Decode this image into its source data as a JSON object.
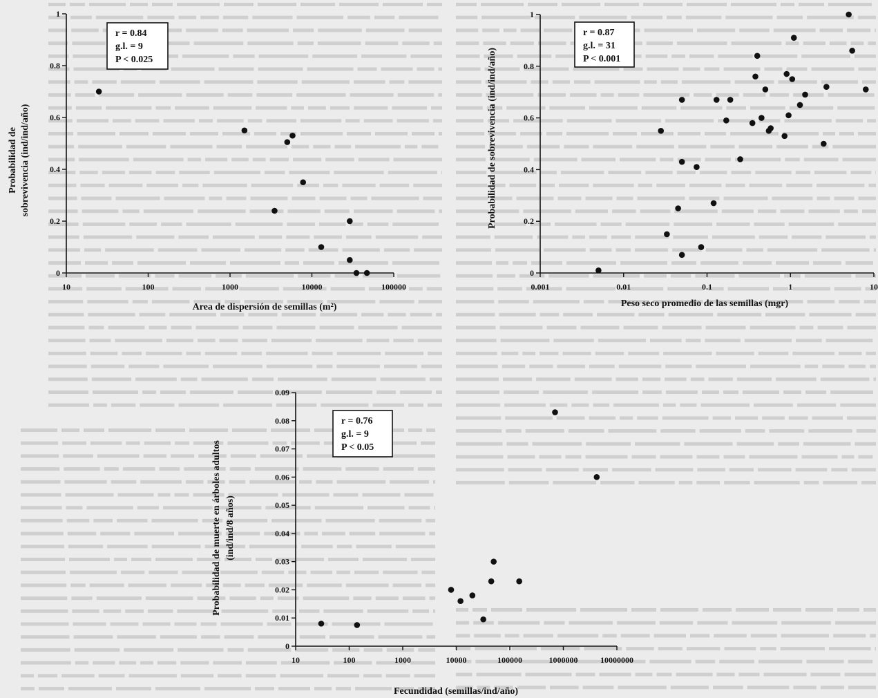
{
  "colors": {
    "page": "#ececec",
    "ink": "#111111",
    "ghost_text": "#cfcfcf",
    "stat_box": "#ffffff"
  },
  "chart_data": [
    {
      "type": "scatter",
      "xlabel": "Area de dispersión de semillas (m²)",
      "ylabel_lines": [
        "Probabilidad de",
        "sobrevivencia (ind/ind/año)"
      ],
      "x_scale": "log",
      "xlim": [
        10,
        100000
      ],
      "ylim": [
        0,
        1
      ],
      "x_ticks": [
        10,
        100,
        1000,
        10000,
        100000
      ],
      "x_tick_labels": [
        "10",
        "100",
        "1000",
        "10000",
        "100000"
      ],
      "y_ticks": [
        0,
        0.2,
        0.4,
        0.6,
        0.8,
        1
      ],
      "y_tick_labels": [
        "0",
        "0.2",
        "0.4",
        "0.6",
        "0.8",
        "1"
      ],
      "stats": [
        "r = 0.84",
        "g.l. = 9",
        "P < 0.025"
      ],
      "points": [
        {
          "x": 25,
          "y": 0.7
        },
        {
          "x": 1500,
          "y": 0.55
        },
        {
          "x": 5000,
          "y": 0.505
        },
        {
          "x": 5800,
          "y": 0.53
        },
        {
          "x": 7800,
          "y": 0.35
        },
        {
          "x": 3500,
          "y": 0.24
        },
        {
          "x": 13000,
          "y": 0.1
        },
        {
          "x": 29000,
          "y": 0.2
        },
        {
          "x": 29000,
          "y": 0.05
        },
        {
          "x": 35000,
          "y": 0.0
        },
        {
          "x": 47000,
          "y": 0.0
        }
      ]
    },
    {
      "type": "scatter",
      "xlabel": "Peso seco promedio de las semillas (mgr)",
      "ylabel_lines": [
        "Probabilidad de sobrevivencia (ind/ind/año)"
      ],
      "x_scale": "log",
      "xlim": [
        0.001,
        10
      ],
      "ylim": [
        0,
        1
      ],
      "x_ticks": [
        0.001,
        0.01,
        0.1,
        1,
        10
      ],
      "x_tick_labels": [
        "0.001",
        "0.01",
        "0.1",
        "1",
        "10"
      ],
      "y_ticks": [
        0,
        0.2,
        0.4,
        0.6,
        0.8,
        1
      ],
      "y_tick_labels": [
        "0",
        "0.2",
        "0.4",
        "0.6",
        "0.8",
        "1"
      ],
      "stats": [
        "r = 0.87",
        "g.l. = 31",
        "P < 0.001"
      ],
      "points": [
        {
          "x": 0.005,
          "y": 0.01
        },
        {
          "x": 0.028,
          "y": 0.55
        },
        {
          "x": 0.033,
          "y": 0.15
        },
        {
          "x": 0.045,
          "y": 0.25
        },
        {
          "x": 0.05,
          "y": 0.07
        },
        {
          "x": 0.05,
          "y": 0.43
        },
        {
          "x": 0.05,
          "y": 0.67
        },
        {
          "x": 0.075,
          "y": 0.41
        },
        {
          "x": 0.085,
          "y": 0.1
        },
        {
          "x": 0.12,
          "y": 0.27
        },
        {
          "x": 0.13,
          "y": 0.67
        },
        {
          "x": 0.17,
          "y": 0.59
        },
        {
          "x": 0.19,
          "y": 0.67
        },
        {
          "x": 0.25,
          "y": 0.44
        },
        {
          "x": 0.35,
          "y": 0.58
        },
        {
          "x": 0.38,
          "y": 0.76
        },
        {
          "x": 0.4,
          "y": 0.84
        },
        {
          "x": 0.45,
          "y": 0.6
        },
        {
          "x": 0.5,
          "y": 0.71
        },
        {
          "x": 0.55,
          "y": 0.55
        },
        {
          "x": 0.58,
          "y": 0.56
        },
        {
          "x": 0.85,
          "y": 0.53
        },
        {
          "x": 0.9,
          "y": 0.77
        },
        {
          "x": 0.95,
          "y": 0.61
        },
        {
          "x": 1.05,
          "y": 0.75
        },
        {
          "x": 1.1,
          "y": 0.91
        },
        {
          "x": 1.3,
          "y": 0.65
        },
        {
          "x": 1.5,
          "y": 0.69
        },
        {
          "x": 2.5,
          "y": 0.5
        },
        {
          "x": 2.7,
          "y": 0.72
        },
        {
          "x": 5.0,
          "y": 1.0
        },
        {
          "x": 5.5,
          "y": 0.86
        },
        {
          "x": 8.0,
          "y": 0.71
        }
      ]
    },
    {
      "type": "scatter",
      "xlabel": "Fecundidad (semillas/ind/año)",
      "ylabel_lines": [
        "Probabilidad de muerte en árboles adultos",
        "(ind/ind/8 años)"
      ],
      "x_scale": "log",
      "xlim": [
        10,
        10000000
      ],
      "ylim": [
        0,
        0.09
      ],
      "x_ticks": [
        10,
        100,
        1000,
        10000,
        100000,
        1000000,
        10000000
      ],
      "x_tick_labels": [
        "10",
        "100",
        "1000",
        "10000",
        "100000",
        "1000000",
        "10000000"
      ],
      "y_ticks": [
        0,
        0.01,
        0.02,
        0.03,
        0.04,
        0.05,
        0.06,
        0.07,
        0.08,
        0.09
      ],
      "y_tick_labels": [
        "0",
        "0.01",
        "0.02",
        "0.03",
        "0.04",
        "0.05",
        "0.06",
        "0.07",
        "0.08",
        "0.09"
      ],
      "stats": [
        "r = 0.76",
        "g.l. = 9",
        "P < 0.05"
      ],
      "points": [
        {
          "x": 30,
          "y": 0.008
        },
        {
          "x": 140,
          "y": 0.0075
        },
        {
          "x": 8000,
          "y": 0.02
        },
        {
          "x": 12000,
          "y": 0.016
        },
        {
          "x": 20000,
          "y": 0.018
        },
        {
          "x": 32000,
          "y": 0.0095
        },
        {
          "x": 45000,
          "y": 0.023
        },
        {
          "x": 50000,
          "y": 0.03
        },
        {
          "x": 150000,
          "y": 0.023
        },
        {
          "x": 700000,
          "y": 0.083
        },
        {
          "x": 4200000,
          "y": 0.06
        }
      ]
    }
  ]
}
